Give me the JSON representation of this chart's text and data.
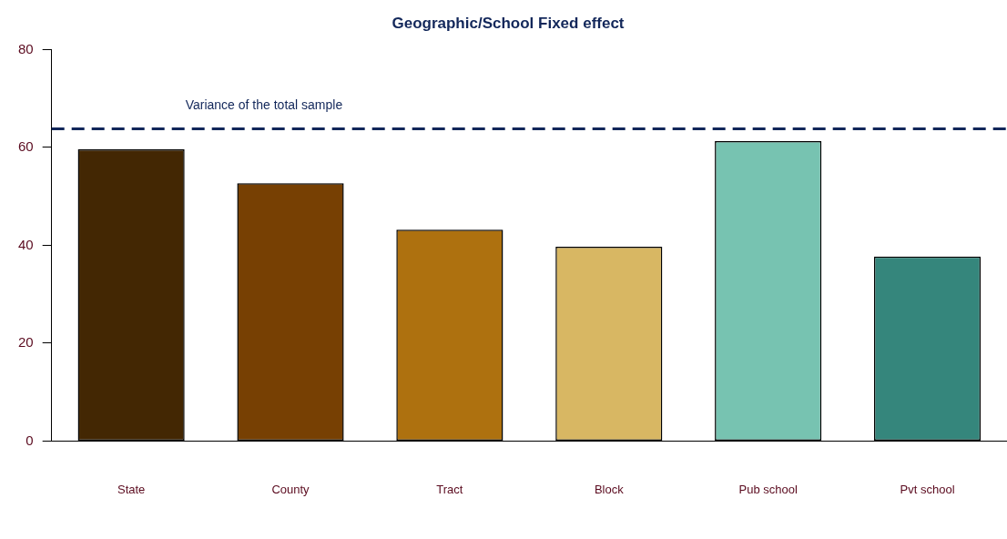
{
  "chart_data": {
    "type": "bar",
    "title": "Geographic/School Fixed effect",
    "categories": [
      "State",
      "County",
      "Tract",
      "Block",
      "Pub school",
      "Pvt school"
    ],
    "values": [
      59.6,
      52.7,
      43.2,
      39.7,
      61.3,
      37.7
    ],
    "colors": [
      "#432703",
      "#774003",
      "#ae710f",
      "#d8b763",
      "#77c3b1",
      "#35867c"
    ],
    "ylim": [
      0,
      80
    ],
    "yticks": [
      0,
      20,
      40,
      60,
      80
    ],
    "grid": false,
    "legend": false,
    "ref_lines": [
      {
        "axis": "y",
        "value": 63.8,
        "label": "Variance of the total sample",
        "color": "#12275a",
        "line_style": "dashed"
      }
    ]
  }
}
